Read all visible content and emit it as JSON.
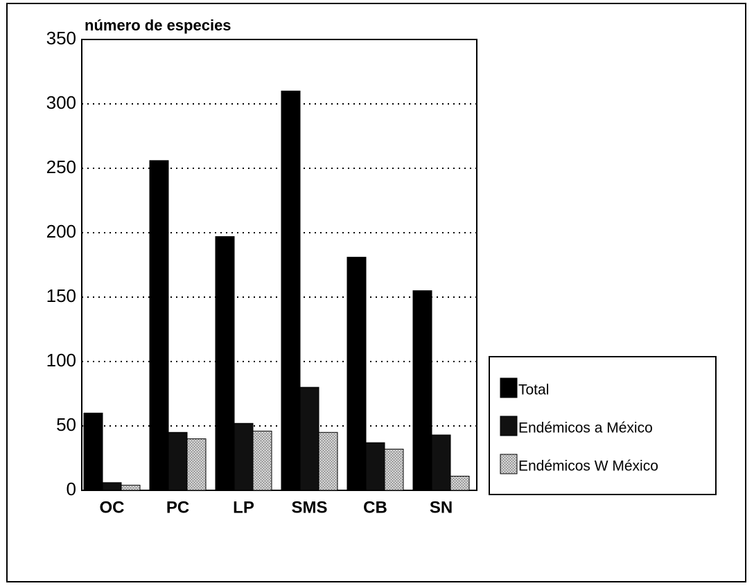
{
  "chart_data": {
    "type": "bar",
    "ylabel": "número de especies",
    "categories": [
      "OC",
      "PC",
      "LP",
      "SMS",
      "CB",
      "SN"
    ],
    "series": [
      {
        "name": "Total",
        "color": "#000000",
        "values": [
          60,
          256,
          197,
          310,
          181,
          155
        ]
      },
      {
        "name": "Endémicos a México",
        "color": "#111111",
        "values": [
          6,
          45,
          52,
          80,
          37,
          43
        ]
      },
      {
        "name": "Endémicos W México",
        "color": "#aaaaaa",
        "values": [
          4,
          40,
          46,
          45,
          32,
          11
        ]
      }
    ],
    "ylim": [
      0,
      350
    ],
    "yticks": [
      0,
      50,
      100,
      150,
      200,
      250,
      300,
      350
    ],
    "grid": true,
    "legend": "right"
  }
}
